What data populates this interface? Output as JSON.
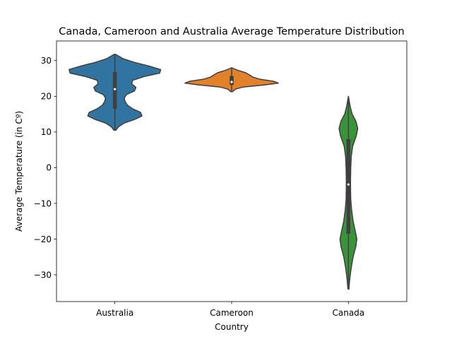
{
  "chart_data": {
    "type": "violin",
    "title": "Canada, Cameroon and Australia Average Temperature Distribution",
    "xlabel": "Country",
    "ylabel": "Average Temperature (in Cº)",
    "ylim": [
      -37.5,
      35.5
    ],
    "yticks": [
      30,
      20,
      10,
      0,
      -10,
      -20,
      -30
    ],
    "categories": [
      "Australia",
      "Cameroon",
      "Canada"
    ],
    "grid": false,
    "series": [
      {
        "category": "Australia",
        "color": "#3274a1",
        "min": 10.5,
        "max": 31.8,
        "q1": 16.5,
        "median": 22.0,
        "q3": 26.8,
        "density": [
          [
            10.5,
            0.02
          ],
          [
            11.5,
            0.08
          ],
          [
            12.5,
            0.2
          ],
          [
            13.5,
            0.42
          ],
          [
            14.5,
            0.58
          ],
          [
            15.5,
            0.55
          ],
          [
            16.5,
            0.38
          ],
          [
            17.5,
            0.27
          ],
          [
            18.5,
            0.22
          ],
          [
            19.5,
            0.2
          ],
          [
            20.5,
            0.25
          ],
          [
            21.5,
            0.42
          ],
          [
            22.5,
            0.45
          ],
          [
            23.5,
            0.36
          ],
          [
            24.5,
            0.38
          ],
          [
            25.5,
            0.62
          ],
          [
            26.5,
            0.96
          ],
          [
            27.5,
            0.98
          ],
          [
            28.5,
            0.72
          ],
          [
            29.5,
            0.42
          ],
          [
            30.5,
            0.18
          ],
          [
            31.5,
            0.05
          ],
          [
            31.8,
            0.0
          ]
        ]
      },
      {
        "category": "Cameroon",
        "color": "#e1812c",
        "min": 21.3,
        "max": 28.0,
        "q1": 23.2,
        "median": 24.0,
        "q3": 25.7,
        "density": [
          [
            21.3,
            0.02
          ],
          [
            22.0,
            0.08
          ],
          [
            22.6,
            0.25
          ],
          [
            23.2,
            0.72
          ],
          [
            23.7,
            1.0
          ],
          [
            24.2,
            0.9
          ],
          [
            24.8,
            0.6
          ],
          [
            25.4,
            0.45
          ],
          [
            26.0,
            0.38
          ],
          [
            26.6,
            0.3
          ],
          [
            27.2,
            0.15
          ],
          [
            27.7,
            0.05
          ],
          [
            28.0,
            0.0
          ]
        ]
      },
      {
        "category": "Canada",
        "color": "#3a923a",
        "min": -34.0,
        "max": 20.0,
        "q1": -18.5,
        "median": -4.7,
        "q3": 8.0,
        "density": [
          [
            -34.0,
            0.01
          ],
          [
            -31.0,
            0.03
          ],
          [
            -28.0,
            0.06
          ],
          [
            -25.0,
            0.1
          ],
          [
            -22.0,
            0.16
          ],
          [
            -20.0,
            0.18
          ],
          [
            -18.0,
            0.15
          ],
          [
            -15.0,
            0.1
          ],
          [
            -12.0,
            0.07
          ],
          [
            -9.0,
            0.05
          ],
          [
            -6.0,
            0.045
          ],
          [
            -3.0,
            0.045
          ],
          [
            0.0,
            0.05
          ],
          [
            3.0,
            0.06
          ],
          [
            6.0,
            0.09
          ],
          [
            9.0,
            0.17
          ],
          [
            11.0,
            0.2
          ],
          [
            13.0,
            0.16
          ],
          [
            15.0,
            0.08
          ],
          [
            17.0,
            0.04
          ],
          [
            20.0,
            0.0
          ]
        ]
      }
    ]
  }
}
